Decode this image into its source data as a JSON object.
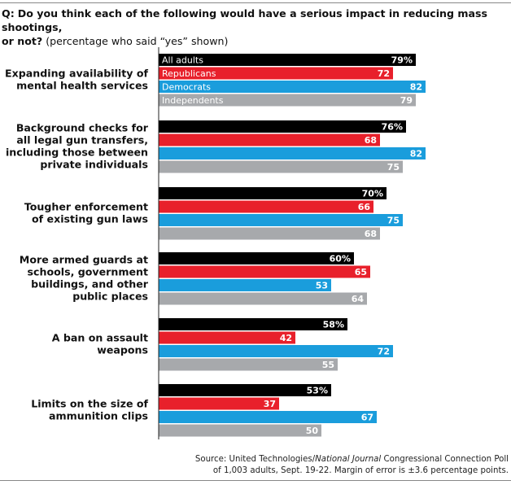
{
  "question": {
    "prefix": "Q:",
    "text_bold_1": "Do you think each of the following would have a serious impact in reducing mass shootings,",
    "text_bold_2": "or not?",
    "text_note": "(percentage who said “yes” shown)"
  },
  "source": {
    "line1_a": "Source: United Technologies/",
    "line1_italic": "National Journal",
    "line1_b": " Congressional Connection Poll",
    "line2": "of 1,003 adults, Sept. 19-22. Margin of error is ±3.6 percentage points."
  },
  "colors": {
    "All adults": "#000000",
    "Republicans": "#e8202b",
    "Democrats": "#1a9ddc",
    "Independents": "#a7a9ac"
  },
  "chart_data": {
    "type": "bar",
    "orientation": "horizontal",
    "categories": [
      [
        "Expanding availability of",
        "mental health services"
      ],
      [
        "Background checks for",
        "all legal gun transfers,",
        "including those between",
        "private individuals"
      ],
      [
        "Tougher enforcement",
        "of existing gun laws"
      ],
      [
        "More armed guards at",
        "schools, government",
        "buildings, and other",
        "public places"
      ],
      [
        "A ban on assault",
        "weapons"
      ],
      [
        "Limits on the size of",
        "ammunition clips"
      ]
    ],
    "series": [
      {
        "name": "All adults",
        "values": [
          79,
          76,
          70,
          60,
          58,
          53
        ],
        "labels": [
          "79%",
          "76%",
          "70%",
          "60%",
          "58%",
          "53%"
        ]
      },
      {
        "name": "Republicans",
        "values": [
          72,
          68,
          66,
          65,
          42,
          37
        ],
        "labels": [
          "72",
          "68",
          "66",
          "65",
          "42",
          "37"
        ]
      },
      {
        "name": "Democrats",
        "values": [
          82,
          82,
          75,
          53,
          72,
          67
        ],
        "labels": [
          "82",
          "82",
          "75",
          "53",
          "72",
          "67"
        ]
      },
      {
        "name": "Independents",
        "values": [
          79,
          75,
          68,
          64,
          55,
          50
        ],
        "labels": [
          "79",
          "75",
          "68",
          "64",
          "55",
          "50"
        ]
      }
    ],
    "legend_placement": "inside first group bars",
    "xlim": [
      0,
      100
    ],
    "grid": false
  }
}
